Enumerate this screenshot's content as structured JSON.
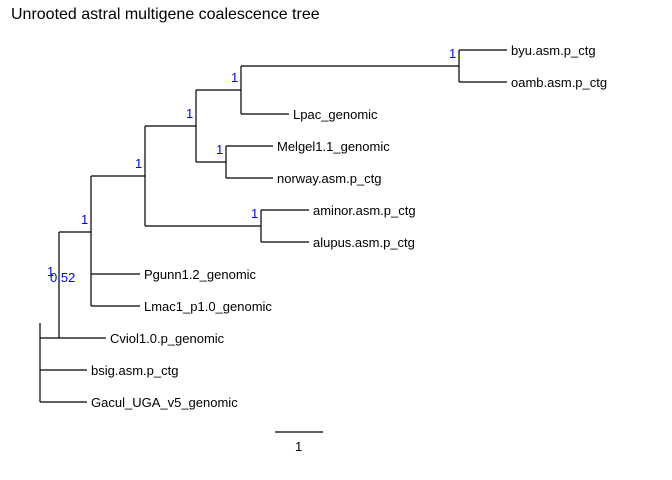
{
  "title": "Unrooted astral multigene coalescence tree",
  "colors": {
    "support": "#0000ff",
    "branch": "#000000",
    "text": "#000000"
  },
  "tips": [
    "byu.asm.p_ctg",
    "oamb.asm.p_ctg",
    "Lpac_genomic",
    "Melgel1.1_genomic",
    "norway.asm.p_ctg",
    "aminor.asm.p_ctg",
    "alupus.asm.p_ctg",
    "Pgunn1.2_genomic",
    "Lmac1_p1.0_genomic",
    "Cviol1.0.p_genomic",
    "bsig.asm.p_ctg",
    "Gacul_UGA_v5_genomic"
  ],
  "support_values": {
    "byu_oamb": "1",
    "lpac_clade": "1",
    "lpac_melgel_clade": "1",
    "melgel_norway": "1",
    "ingroup_core": "1",
    "aminor_alupus": "1",
    "pgunn_lmac_clade": "1",
    "cviol_clade_a": "1",
    "cviol_clade_b": "0.52"
  },
  "scale_bar": {
    "label": "1"
  }
}
